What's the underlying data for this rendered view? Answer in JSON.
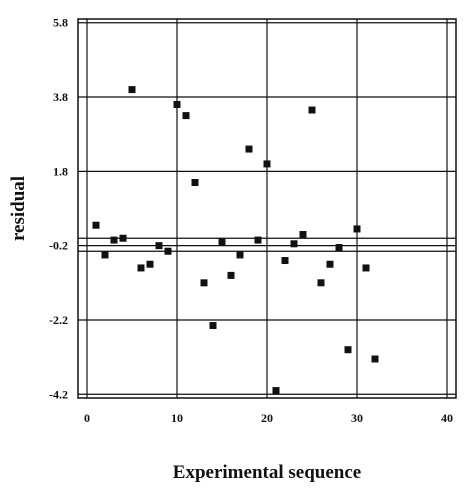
{
  "chart_data": {
    "type": "scatter",
    "title": "",
    "xlabel": "Experimental sequence",
    "ylabel": "residual",
    "xlim": [
      -1,
      41
    ],
    "ylim": [
      -4.3,
      5.9
    ],
    "x_ticks": [
      0,
      10,
      20,
      30,
      40
    ],
    "y_ticks": [
      5.8,
      3.8,
      1.8,
      -0.2,
      -2.2,
      -4.2
    ],
    "grid": true,
    "marker": "square",
    "colors": {
      "marker": "#111111",
      "grid": "#111111",
      "background": "#ffffff"
    },
    "reference_lines": [
      0.0,
      -0.35
    ],
    "points": [
      {
        "x": 1,
        "y": 0.35
      },
      {
        "x": 2,
        "y": -0.45
      },
      {
        "x": 3,
        "y": -0.05
      },
      {
        "x": 4,
        "y": 0.0
      },
      {
        "x": 5,
        "y": 4.0
      },
      {
        "x": 6,
        "y": -0.8
      },
      {
        "x": 7,
        "y": -0.7
      },
      {
        "x": 8,
        "y": -0.2
      },
      {
        "x": 9,
        "y": -0.35
      },
      {
        "x": 10,
        "y": 3.6
      },
      {
        "x": 11,
        "y": 3.3
      },
      {
        "x": 12,
        "y": 1.5
      },
      {
        "x": 13,
        "y": -1.2
      },
      {
        "x": 14,
        "y": -2.35
      },
      {
        "x": 15,
        "y": -0.1
      },
      {
        "x": 16,
        "y": -1.0
      },
      {
        "x": 17,
        "y": -0.45
      },
      {
        "x": 18,
        "y": 2.4
      },
      {
        "x": 19,
        "y": -0.05
      },
      {
        "x": 20,
        "y": 2.0
      },
      {
        "x": 21,
        "y": -4.1
      },
      {
        "x": 22,
        "y": -0.6
      },
      {
        "x": 23,
        "y": -0.15
      },
      {
        "x": 24,
        "y": 0.1
      },
      {
        "x": 25,
        "y": 3.45
      },
      {
        "x": 26,
        "y": -1.2
      },
      {
        "x": 27,
        "y": -0.7
      },
      {
        "x": 28,
        "y": -0.25
      },
      {
        "x": 29,
        "y": -3.0
      },
      {
        "x": 30,
        "y": 0.25
      },
      {
        "x": 31,
        "y": -0.8
      },
      {
        "x": 32,
        "y": -3.25
      }
    ]
  }
}
